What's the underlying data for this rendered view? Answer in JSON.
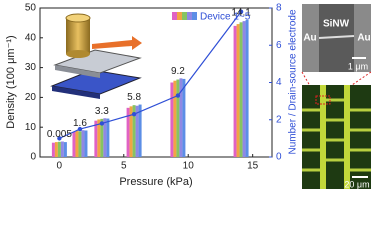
{
  "chart_data": {
    "type": "bar",
    "x": [
      0.005,
      1.6,
      3.3,
      5.8,
      9.2,
      14.1
    ],
    "xlim": [
      -1.5,
      16.5
    ],
    "xticks": [
      0,
      5,
      10,
      15
    ],
    "xlabel": "Pressure (kPa)",
    "ylabel": "Density (100 μm⁻¹)",
    "ylim": [
      0,
      50
    ],
    "yticks": [
      0,
      10,
      20,
      30,
      40,
      50
    ],
    "y2label": "Number / Drain-source electrode",
    "y2lim": [
      0,
      8
    ],
    "y2ticks": [
      0,
      2,
      4,
      6,
      8
    ],
    "legend": {
      "label": "Device 1~5",
      "corner": "upper-right"
    },
    "series": [
      {
        "color": "#e062c4",
        "values": [
          4.8,
          8.4,
          12.2,
          16.5,
          25.0,
          44.0
        ]
      },
      {
        "color": "#f2a444",
        "values": [
          5.0,
          8.8,
          12.6,
          17.0,
          25.6,
          44.6
        ]
      },
      {
        "color": "#86c462",
        "values": [
          5.1,
          8.6,
          12.8,
          17.4,
          26.0,
          45.2
        ]
      },
      {
        "color": "#9088e4",
        "values": [
          5.2,
          9.0,
          13.0,
          17.2,
          26.4,
          45.6
        ]
      },
      {
        "color": "#5c8ee6",
        "values": [
          5.0,
          8.9,
          12.9,
          17.6,
          26.2,
          46.0
        ]
      },
      {
        "type": "line",
        "axis": "y2",
        "color": "#2f4fd6",
        "values": [
          1.0,
          1.5,
          1.8,
          2.3,
          3.3,
          7.8
        ]
      }
    ],
    "panels": {
      "sem": {
        "left": "Au",
        "center": "SiNW",
        "right": "Au",
        "scale": "1 μm"
      },
      "optical": {
        "scale": "20 μm"
      }
    }
  }
}
